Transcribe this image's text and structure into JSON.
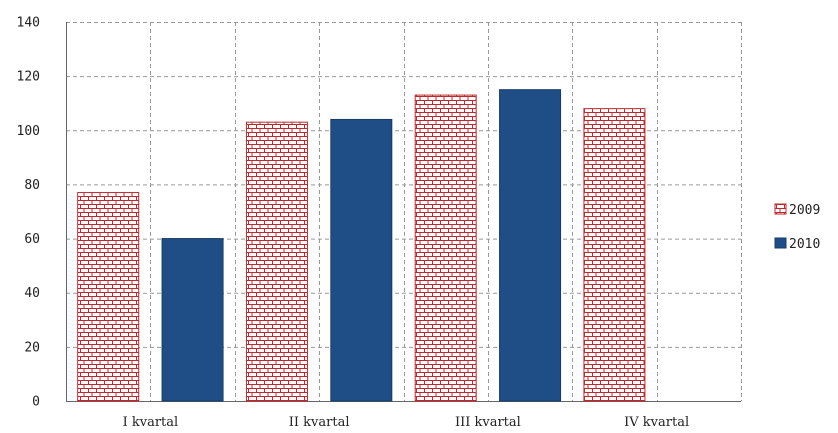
{
  "chart_data": {
    "type": "bar",
    "categories": [
      "I kvartal",
      "II kvartal",
      "III kvartal",
      "IV kvartal"
    ],
    "series": [
      {
        "name": "2009",
        "values": [
          77,
          103,
          113,
          108
        ],
        "color": "#c0282d",
        "pattern": "brick"
      },
      {
        "name": "2010",
        "values": [
          60,
          104,
          115,
          null
        ],
        "color": "#1f4e86",
        "pattern": "solid"
      }
    ],
    "ylim": [
      0,
      140
    ],
    "yticks": [
      "0",
      "20",
      "40",
      "60",
      "80",
      "100",
      "120",
      "140"
    ],
    "grid": true,
    "legend_position": "right"
  }
}
